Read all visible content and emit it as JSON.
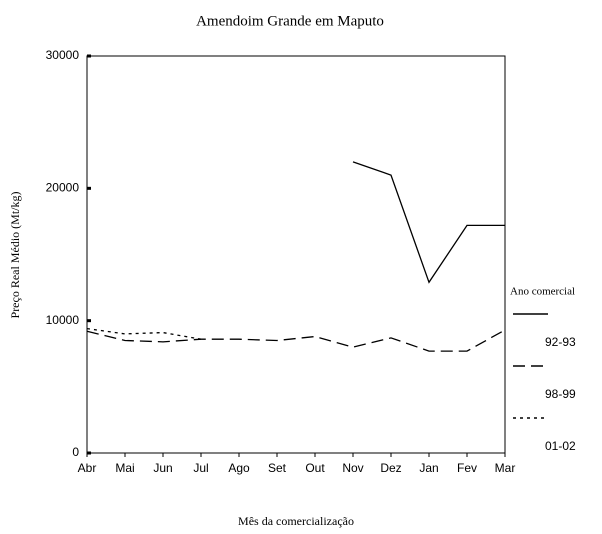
{
  "chart_data": {
    "type": "line",
    "title": "Amendoim Grande em Maputo",
    "x_label": "Mês da comercialização",
    "y_label": "Preço Real Médio (Mt/kg)",
    "categories": [
      "Abr",
      "Mai",
      "Jun",
      "Jul",
      "Ago",
      "Set",
      "Out",
      "Nov",
      "Dez",
      "Jan",
      "Fev",
      "Mar"
    ],
    "series": [
      {
        "name": "92-93",
        "color": "#000000",
        "linestyle": "solid",
        "values": [
          null,
          null,
          null,
          null,
          null,
          null,
          null,
          22000,
          21000,
          12900,
          17200,
          17200
        ]
      },
      {
        "name": "98-99",
        "color": "#000000",
        "linestyle": "dashed",
        "values": [
          9200,
          8500,
          8400,
          8600,
          8600,
          8500,
          8800,
          8000,
          8700,
          7700,
          7700,
          9300
        ]
      },
      {
        "name": "01-02",
        "color": "#000000",
        "linestyle": "dotted",
        "values": [
          9400,
          9000,
          9100,
          8600,
          null,
          null,
          null,
          null,
          null,
          null,
          null,
          null
        ]
      }
    ],
    "legend_title": "Ano comercial",
    "legend": "right",
    "ylim": [
      0,
      30000
    ],
    "yticks": [
      0,
      10000,
      20000,
      30000
    ],
    "grid": false
  }
}
